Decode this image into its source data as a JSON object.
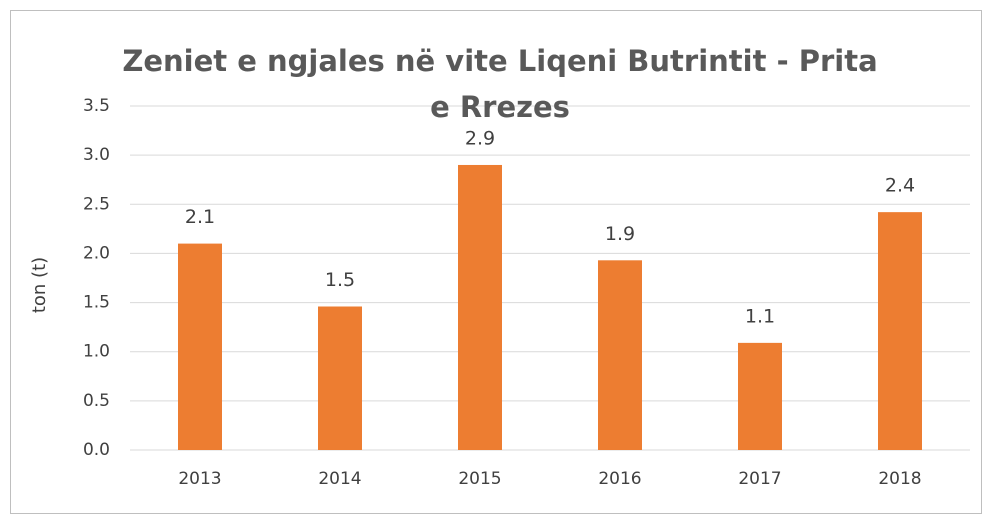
{
  "chart_data": {
    "type": "bar",
    "title": "Zeniet e ngjales në vite Liqeni Butrintit - Prita e Rrezes",
    "y_label": "ton (t)",
    "categories": [
      "2013",
      "2014",
      "2015",
      "2016",
      "2017",
      "2018"
    ],
    "values": [
      2.1,
      1.46,
      2.9,
      1.93,
      1.09,
      2.42
    ],
    "value_labels": [
      "2.1",
      "1.5",
      "2.9",
      "1.9",
      "1.1",
      "2.4"
    ],
    "color": "#ed7d31",
    "ylim": [
      0,
      3.5
    ],
    "yticks": [
      {
        "value": 0,
        "label": "0.0"
      },
      0.5,
      {
        "value": 1,
        "label": "1.0"
      },
      1.5,
      {
        "value": 2,
        "label": "2.0"
      },
      2.5,
      {
        "value": 3,
        "label": "3.0"
      },
      3.5
    ],
    "grid": true
  }
}
